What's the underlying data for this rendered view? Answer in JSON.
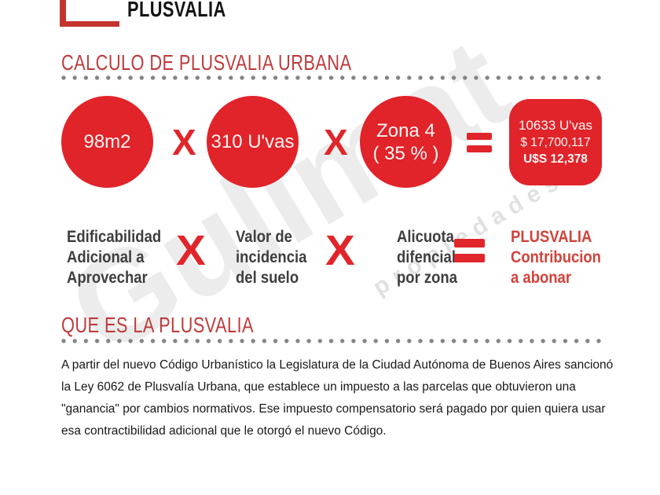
{
  "brand": {
    "logo_text": "PLUSVALIA",
    "watermark_name": "Gulimat",
    "watermark_tagline": "propiedades"
  },
  "colors": {
    "circle_red": "#e1232a",
    "bracket_red": "#c5332f",
    "heading_red": "#be3c3c",
    "symbol_red": "#e0262b",
    "result_text_red": "#d2423a",
    "label_gray": "#3e3e3e"
  },
  "calc_section": {
    "title": "CALCULO DE PLUSVALIA URBANA",
    "equation": {
      "multiply_symbol": "X",
      "operand1": {
        "value": "98m2",
        "label_lines": [
          "Edificabilidad",
          "Adicional a",
          "Aprovechar"
        ]
      },
      "operand2": {
        "value": "310 U'vas",
        "label_lines": [
          "Valor de",
          "incidencia",
          "del suelo"
        ]
      },
      "operand3": {
        "value_lines": [
          "Zona 4",
          "( 35 % )"
        ],
        "label_lines": [
          "Alicuota",
          "difencial",
          "por zona"
        ]
      },
      "result": {
        "value_lines": [
          "10633 U'vas",
          "$ 17,700,117",
          "U$S 12,378"
        ],
        "label_lines": [
          "PLUSVALIA",
          "Contribucion",
          "a abonar"
        ]
      }
    }
  },
  "about_section": {
    "title": "QUE ES LA PLUSVALIA",
    "body": "A partir del nuevo Código Urbanístico la Legislatura de la Ciudad Autónoma de Buenos Aires sancionó la Ley 6062 de Plusvalía Urbana, que establece un impuesto a las parcelas que obtuvieron una \"ganancia\" por cambios normativos. Ese impuesto compensatorio será pagado por quien quiera usar esa contractibilidad adicional que le otorgó el nuevo Código."
  }
}
